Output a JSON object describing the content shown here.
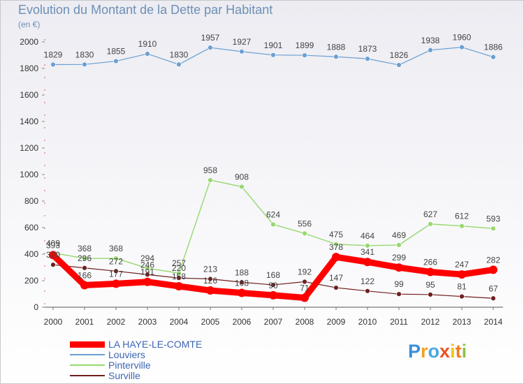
{
  "title": "Evolution du Montant de la Dette par Habitant",
  "unit": "(en €)",
  "logo": [
    "P",
    "r",
    "o",
    "x",
    "i",
    "t",
    "i"
  ],
  "colors": {
    "main": "#ff0000",
    "louviers": "#6a9fd2",
    "pinterville": "#96d86e",
    "surville": "#6e1f1f",
    "title": "#6e8fb5",
    "legend_text": "#3c66b2"
  },
  "chart_data": {
    "type": "line",
    "title": "Evolution du Montant de la Dette par Habitant",
    "ylabel": "(en €)",
    "ylim": [
      0,
      2000
    ],
    "yticks": [
      0,
      200,
      400,
      600,
      800,
      1000,
      1200,
      1400,
      1600,
      1800,
      2000
    ],
    "x": [
      2000,
      2001,
      2002,
      2003,
      2004,
      2005,
      2006,
      2007,
      2008,
      2009,
      2010,
      2011,
      2012,
      2013,
      2014
    ],
    "grid": false,
    "legend": "bottom-left",
    "series": [
      {
        "name": "LA HAYE-LE-COMTE",
        "color": "#ff0000",
        "width": 9,
        "values": [
          393,
          166,
          177,
          191,
          158,
          126,
          108,
          90,
          71,
          378,
          341,
          299,
          266,
          247,
          282
        ]
      },
      {
        "name": "Louviers",
        "color": "#6a9fd2",
        "width": 1.2,
        "values": [
          1829,
          1830,
          1855,
          1910,
          1830,
          1957,
          1927,
          1901,
          1899,
          1888,
          1873,
          1826,
          1938,
          1960,
          1886
        ]
      },
      {
        "name": "Pinterville",
        "color": "#96d86e",
        "width": 1.4,
        "values": [
          409,
          368,
          368,
          294,
          257,
          958,
          908,
          624,
          556,
          475,
          464,
          469,
          627,
          612,
          593
        ]
      },
      {
        "name": "Surville",
        "color": "#6e1f1f",
        "width": 1.2,
        "values": [
          320,
          296,
          272,
          246,
          220,
          213,
          188,
          168,
          192,
          147,
          122,
          99,
          95,
          81,
          67
        ]
      }
    ]
  }
}
